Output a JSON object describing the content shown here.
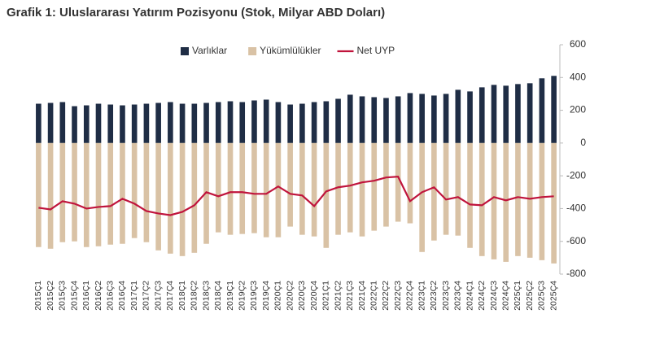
{
  "chart_data": {
    "type": "bar_line",
    "title": "Grafik 1: Uluslararası Yatırım Pozisyonu (Stok, Milyar ABD Doları)",
    "categories": [
      "2015Ç1",
      "2015Ç2",
      "2015Ç3",
      "2015Ç4",
      "2016Ç1",
      "2016Ç2",
      "2016Ç3",
      "2016Ç4",
      "2017Ç1",
      "2017Ç2",
      "2017Ç3",
      "2017Ç4",
      "2018Ç1",
      "2018Ç2",
      "2018Ç3",
      "2018Ç4",
      "2019Ç1",
      "2019Ç2",
      "2019Ç3",
      "2019Ç4",
      "2020Ç1",
      "2020Ç2",
      "2020Ç3",
      "2020Ç4",
      "2021Ç1",
      "2021Ç2",
      "2021Ç3",
      "2021Ç4",
      "2022Ç1",
      "2022Ç2",
      "2022Ç3",
      "2022Ç4",
      "2023Ç1",
      "2023Ç2",
      "2023Ç3",
      "2023Ç4",
      "2024Ç1",
      "2024Ç2",
      "2024Ç3",
      "2024Ç4",
      "2025Ç1",
      "2025Ç2",
      "2025Ç3",
      "2025Ç4"
    ],
    "series": [
      {
        "name": "Varlıklar",
        "color": "#1f2d45",
        "kind": "bar",
        "values": [
          240,
          245,
          250,
          225,
          230,
          240,
          235,
          230,
          235,
          240,
          245,
          250,
          240,
          240,
          245,
          250,
          255,
          250,
          260,
          265,
          250,
          235,
          240,
          250,
          255,
          270,
          295,
          285,
          280,
          275,
          285,
          305,
          300,
          290,
          300,
          325,
          315,
          340,
          355,
          350,
          360,
          365,
          395,
          410
        ]
      },
      {
        "name": "Yükümlülükler",
        "color": "#d9c2a5",
        "kind": "bar",
        "values": [
          -635,
          -645,
          -605,
          -600,
          -635,
          -630,
          -620,
          -615,
          -580,
          -605,
          -655,
          -675,
          -690,
          -670,
          -615,
          -545,
          -560,
          -555,
          -550,
          -575,
          -575,
          -510,
          -560,
          -570,
          -640,
          -560,
          -545,
          -570,
          -535,
          -510,
          -480,
          -490,
          -665,
          -595,
          -560,
          -565,
          -640,
          -690,
          -710,
          -725,
          -690,
          -700,
          -715,
          -735
        ]
      },
      {
        "name": "Net UYP",
        "color": "#c0143c",
        "kind": "line",
        "values": [
          -395,
          -405,
          -355,
          -370,
          -400,
          -390,
          -385,
          -340,
          -370,
          -415,
          -430,
          -440,
          -420,
          -380,
          -300,
          -325,
          -300,
          -300,
          -310,
          -310,
          -265,
          -310,
          -320,
          -385,
          -295,
          -270,
          -260,
          -240,
          -230,
          -210,
          -205,
          -355,
          -300,
          -270,
          -345,
          -330,
          -375,
          -380,
          -330,
          -350,
          -330,
          -340,
          -330,
          -325
        ]
      }
    ],
    "ylim": [
      -800,
      600
    ],
    "yticks": [
      -800,
      -600,
      -400,
      -200,
      0,
      200,
      400,
      600
    ],
    "y_axis_side": "right",
    "legend": "top",
    "grid": false
  }
}
